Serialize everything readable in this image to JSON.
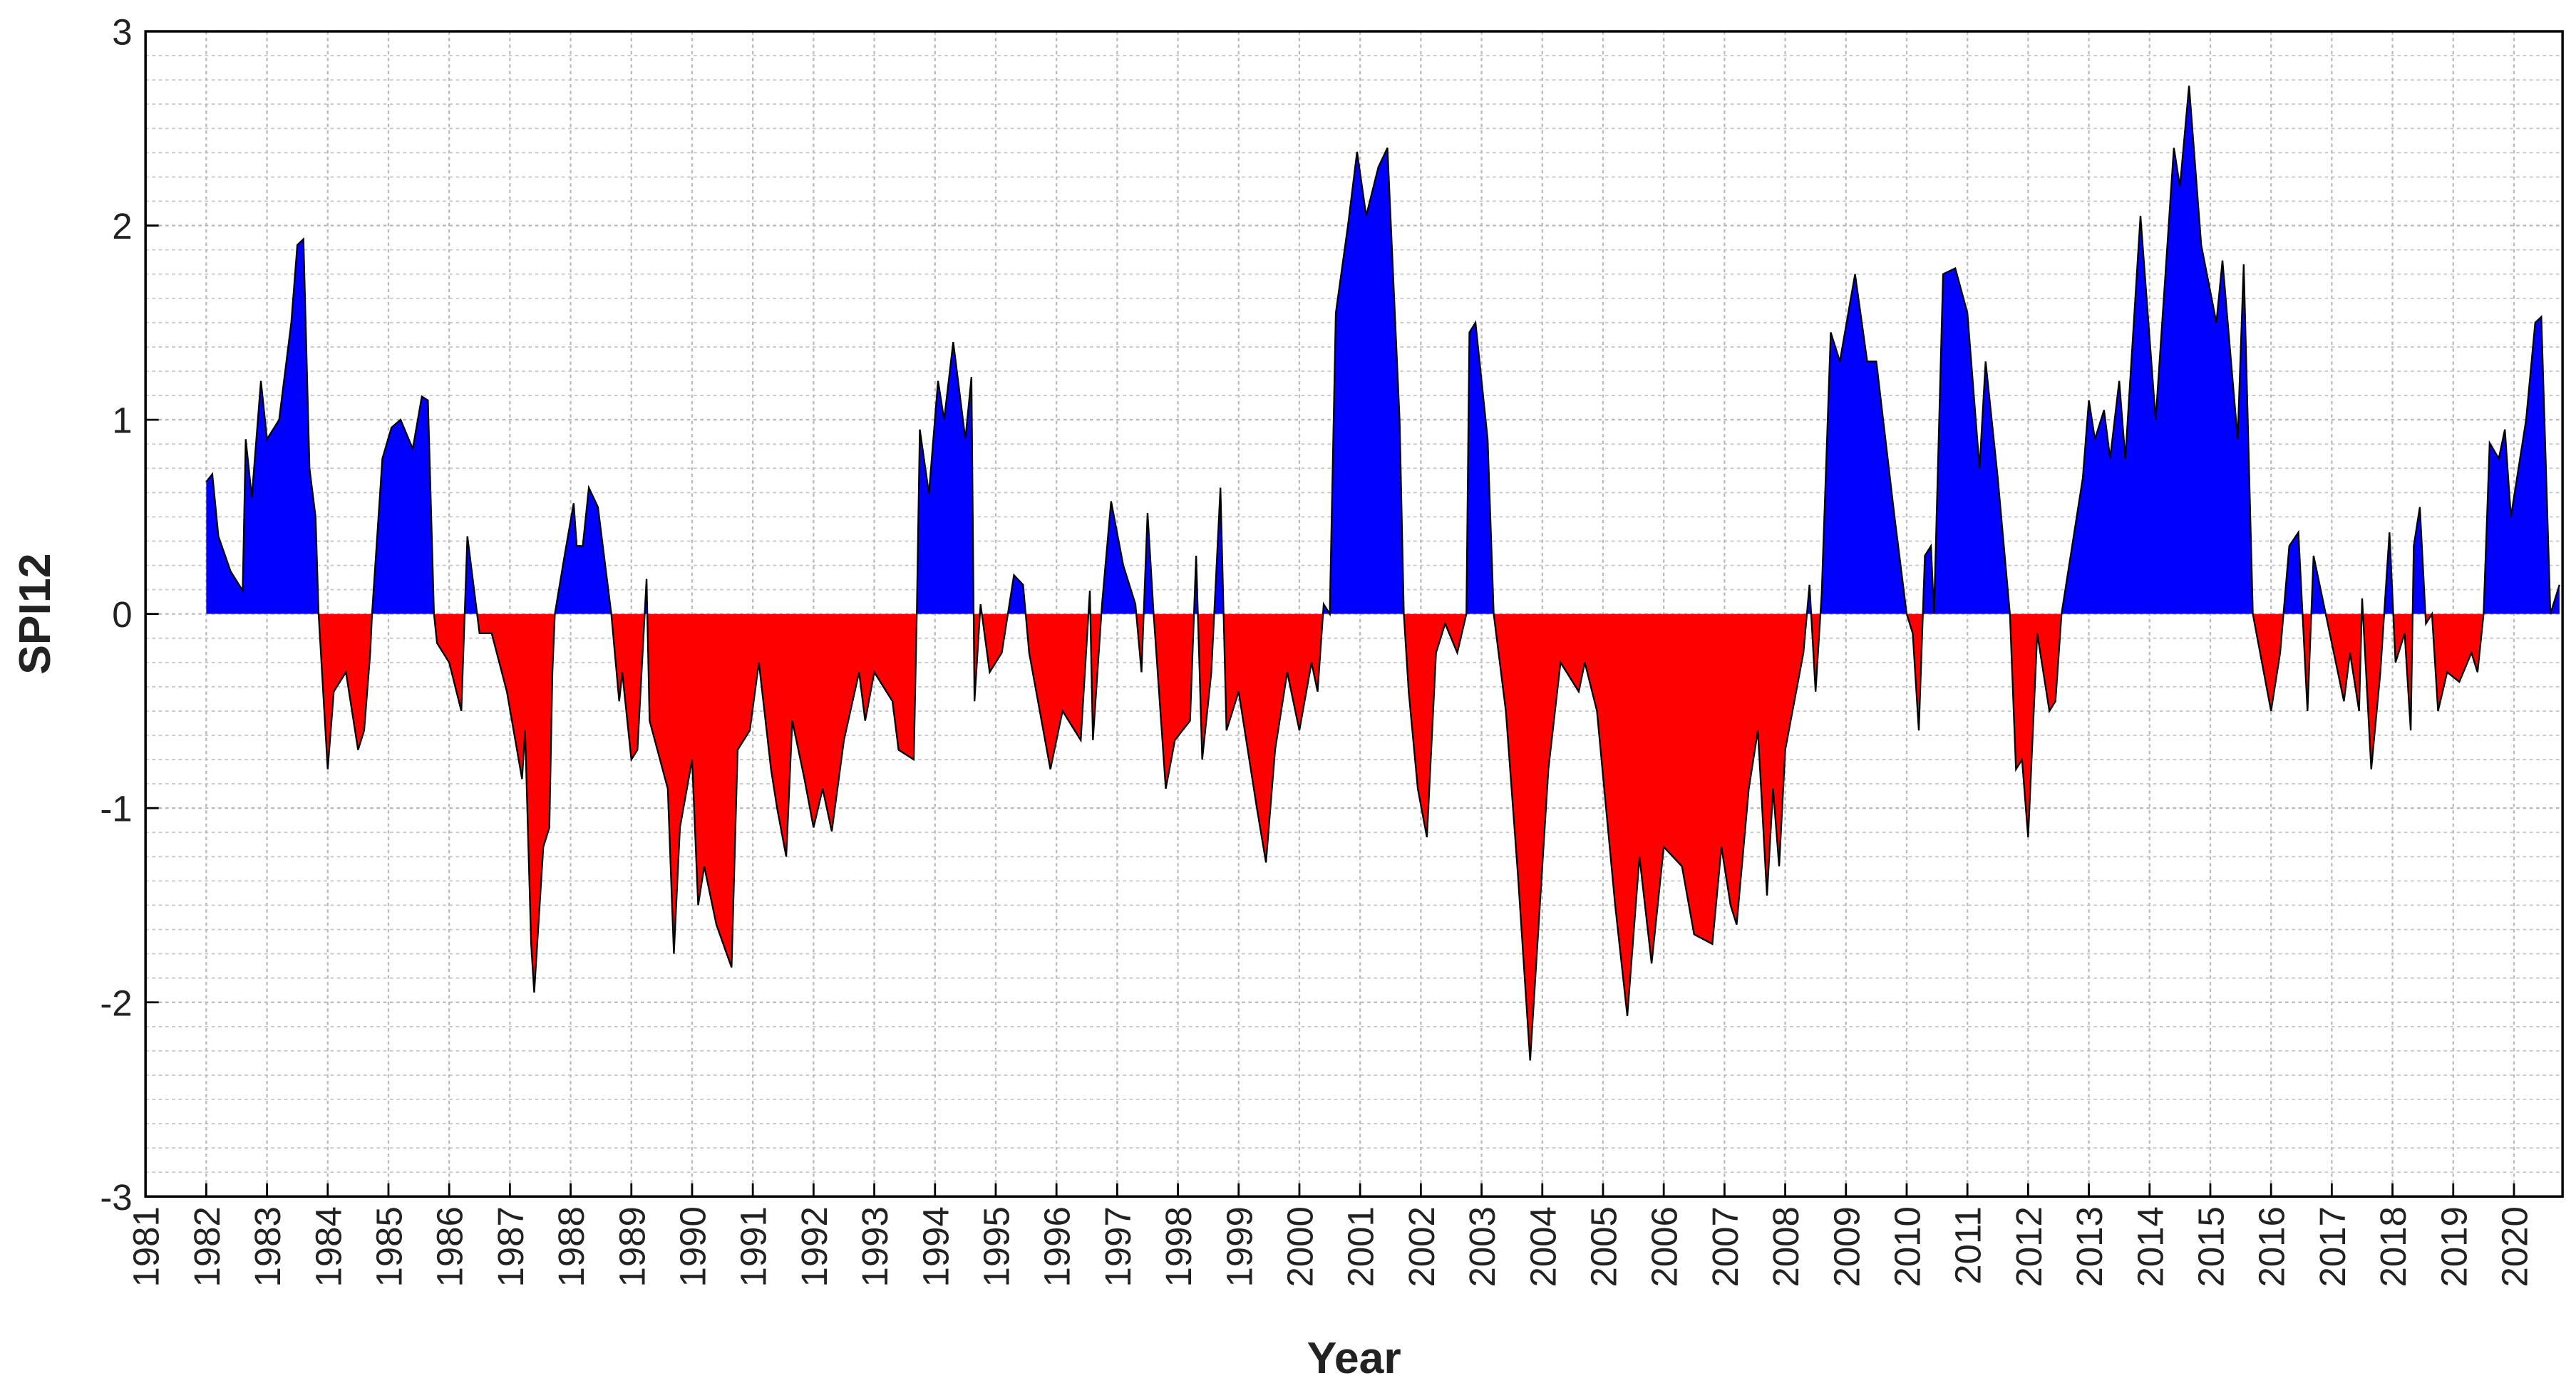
{
  "chart_data": {
    "type": "area",
    "xlabel": "Year",
    "ylabel": "SPI12",
    "positive_color": "#0000ff",
    "negative_color": "#ff0000",
    "line_color": "#000000",
    "grid": true,
    "xlim": [
      1981,
      2020.8
    ],
    "ylim": [
      -3,
      3
    ],
    "xticks": [
      1981,
      1982,
      1983,
      1984,
      1985,
      1986,
      1987,
      1988,
      1989,
      1990,
      1991,
      1992,
      1993,
      1994,
      1995,
      1996,
      1997,
      1998,
      1999,
      2000,
      2001,
      2002,
      2003,
      2004,
      2005,
      2006,
      2007,
      2008,
      2009,
      2010,
      2011,
      2012,
      2013,
      2014,
      2015,
      2016,
      2017,
      2018,
      2019,
      2020
    ],
    "yticks": [
      -3,
      -2,
      -1,
      0,
      1,
      2,
      3
    ],
    "x": [
      1982.0,
      1982.1,
      1982.2,
      1982.4,
      1982.6,
      1982.65,
      1982.75,
      1982.9,
      1983.0,
      1983.2,
      1983.4,
      1983.5,
      1983.6,
      1983.7,
      1983.8,
      1983.85,
      1984.0,
      1984.1,
      1984.3,
      1984.5,
      1984.6,
      1984.7,
      1984.73,
      1984.9,
      1985.05,
      1985.2,
      1985.4,
      1985.55,
      1985.65,
      1985.75,
      1985.8,
      1986.0,
      1986.2,
      1986.3,
      1986.5,
      1986.7,
      1986.95,
      1987.2,
      1987.25,
      1987.35,
      1987.4,
      1987.55,
      1987.65,
      1987.7,
      1987.74,
      1987.9,
      1988.05,
      1988.1,
      1988.2,
      1988.3,
      1988.45,
      1988.67,
      1988.8,
      1988.85,
      1989.0,
      1989.1,
      1989.25,
      1989.3,
      1989.6,
      1989.7,
      1989.8,
      1990.0,
      1990.1,
      1990.2,
      1990.4,
      1990.65,
      1990.75,
      1990.95,
      1991.1,
      1991.3,
      1991.4,
      1991.55,
      1991.65,
      1991.85,
      1992.0,
      1992.15,
      1992.3,
      1992.5,
      1992.75,
      1992.85,
      1993.0,
      1993.3,
      1993.4,
      1993.65,
      1993.7,
      1993.75,
      1993.9,
      1994.05,
      1994.15,
      1994.3,
      1994.5,
      1994.6,
      1994.65,
      1994.75,
      1994.9,
      1995.1,
      1995.3,
      1995.45,
      1995.55,
      1995.9,
      1996.1,
      1996.4,
      1996.55,
      1996.6,
      1996.75,
      1996.9,
      1997.1,
      1997.3,
      1997.4,
      1997.5,
      1997.6,
      1997.8,
      1997.95,
      1998.2,
      1998.3,
      1998.4,
      1998.55,
      1998.7,
      1998.8,
      1999.0,
      1999.3,
      1999.45,
      1999.6,
      1999.8,
      2000.0,
      2000.2,
      2000.3,
      2000.4,
      2000.5,
      2000.6,
      2000.8,
      2000.95,
      2001.1,
      2001.3,
      2001.45,
      2001.65,
      2001.72,
      2001.8,
      2001.95,
      2002.1,
      2002.25,
      2002.4,
      2002.6,
      2002.75,
      2002.8,
      2002.9,
      2003.1,
      2003.2,
      2003.4,
      2003.6,
      2003.8,
      2003.9,
      2004.1,
      2004.3,
      2004.6,
      2004.7,
      2004.9,
      2005.05,
      2005.2,
      2005.4,
      2005.6,
      2005.8,
      2006.0,
      2006.3,
      2006.5,
      2006.8,
      2006.95,
      2007.1,
      2007.2,
      2007.4,
      2007.55,
      2007.7,
      2007.8,
      2007.9,
      2008.0,
      2008.3,
      2008.4,
      2008.5,
      2008.6,
      2008.75,
      2008.9,
      2009.15,
      2009.35,
      2009.5,
      2009.8,
      2010.0,
      2010.1,
      2010.2,
      2010.3,
      2010.4,
      2010.45,
      2010.6,
      2010.8,
      2011.0,
      2011.2,
      2011.3,
      2011.5,
      2011.7,
      2011.8,
      2011.9,
      2012.0,
      2012.15,
      2012.35,
      2012.45,
      2012.55,
      2012.65,
      2012.9,
      2013.0,
      2013.1,
      2013.25,
      2013.35,
      2013.5,
      2013.6,
      2013.85,
      2014.1,
      2014.4,
      2014.5,
      2014.65,
      2014.85,
      2015.1,
      2015.2,
      2015.45,
      2015.55,
      2015.7,
      2016.0,
      2016.15,
      2016.3,
      2016.45,
      2016.6,
      2016.7,
      2016.9,
      2017.0,
      2017.2,
      2017.3,
      2017.45,
      2017.5,
      2017.65,
      2017.8,
      2017.95,
      2018.05,
      2018.2,
      2018.3,
      2018.35,
      2018.45,
      2018.55,
      2018.65,
      2018.75,
      2018.9,
      2019.1,
      2019.3,
      2019.4,
      2019.5,
      2019.6,
      2019.75,
      2019.85,
      2019.95,
      2020.1,
      2020.2,
      2020.35,
      2020.45,
      2020.6,
      2020.75
    ],
    "values": [
      0.68,
      0.72,
      0.4,
      0.22,
      0.12,
      0.9,
      0.6,
      1.2,
      0.9,
      1.0,
      1.5,
      1.9,
      1.93,
      0.75,
      0.5,
      0,
      -0.8,
      -0.4,
      -0.3,
      -0.7,
      -0.6,
      -0.2,
      0,
      0.8,
      0.96,
      1.0,
      0.85,
      1.12,
      1.1,
      0,
      -0.15,
      -0.25,
      -0.5,
      0.4,
      -0.1,
      -0.1,
      -0.4,
      -0.85,
      -0.6,
      -1.7,
      -1.95,
      -1.2,
      -1.1,
      -0.3,
      0,
      0.3,
      0.57,
      0.35,
      0.35,
      0.65,
      0.55,
      0,
      -0.45,
      -0.3,
      -0.75,
      -0.7,
      0.18,
      -0.55,
      -0.9,
      -1.75,
      -1.1,
      -0.75,
      -1.5,
      -1.3,
      -1.6,
      -1.82,
      -0.7,
      -0.6,
      -0.25,
      -0.8,
      -1.0,
      -1.25,
      -0.55,
      -0.85,
      -1.1,
      -0.9,
      -1.12,
      -0.65,
      -0.3,
      -0.55,
      -0.3,
      -0.45,
      -0.7,
      -0.75,
      0,
      0.95,
      0.62,
      1.2,
      1.0,
      1.4,
      0.9,
      1.22,
      -0.45,
      0.05,
      -0.3,
      -0.2,
      0.2,
      0.15,
      -0.2,
      -0.8,
      -0.5,
      -0.65,
      0.12,
      -0.65,
      0.05,
      0.58,
      0.25,
      0.05,
      -0.3,
      0.52,
      0,
      -0.9,
      -0.65,
      -0.55,
      0.3,
      -0.75,
      -0.3,
      0.65,
      -0.6,
      -0.4,
      -1.0,
      -1.28,
      -0.7,
      -0.3,
      -0.6,
      -0.25,
      -0.4,
      0.05,
      0,
      1.55,
      2.0,
      2.38,
      2.05,
      2.3,
      2.4,
      1.0,
      0,
      -0.4,
      -0.9,
      -1.15,
      -0.2,
      -0.05,
      -0.2,
      0,
      1.45,
      1.5,
      0.9,
      0,
      -0.5,
      -1.35,
      -2.3,
      -1.8,
      -0.8,
      -0.25,
      -0.4,
      -0.25,
      -0.5,
      -1.0,
      -1.5,
      -2.07,
      -1.25,
      -1.8,
      -1.2,
      -1.3,
      -1.65,
      -1.7,
      -1.2,
      -1.5,
      -1.6,
      -0.9,
      -0.6,
      -1.45,
      -0.9,
      -1.3,
      -0.7,
      -0.2,
      0.15,
      -0.4,
      0.1,
      1.45,
      1.3,
      1.75,
      1.3,
      1.3,
      0.5,
      0,
      -0.1,
      -0.6,
      0.3,
      0.35,
      0,
      1.75,
      1.78,
      1.55,
      0.75,
      1.3,
      0.7,
      0,
      -0.8,
      -0.75,
      -1.15,
      -0.1,
      -0.5,
      -0.45,
      0,
      0.2,
      0.7,
      1.1,
      0.9,
      1.05,
      0.8,
      1.2,
      0.8,
      2.05,
      1.0,
      2.4,
      2.2,
      2.72,
      1.9,
      1.5,
      1.82,
      0.9,
      1.8,
      0,
      -0.5,
      -0.2,
      0.35,
      0.42,
      -0.5,
      0.3,
      0,
      -0.15,
      -0.45,
      -0.2,
      -0.5,
      0.08,
      -0.8,
      -0.3,
      0.42,
      -0.25,
      -0.1,
      -0.6,
      0.35,
      0.55,
      -0.05,
      0,
      -0.5,
      -0.3,
      -0.35,
      -0.2,
      -0.3,
      0,
      0.88,
      0.8,
      0.95,
      0.5,
      0.8,
      1.0,
      1.5,
      1.53,
      0,
      0.15
    ]
  }
}
